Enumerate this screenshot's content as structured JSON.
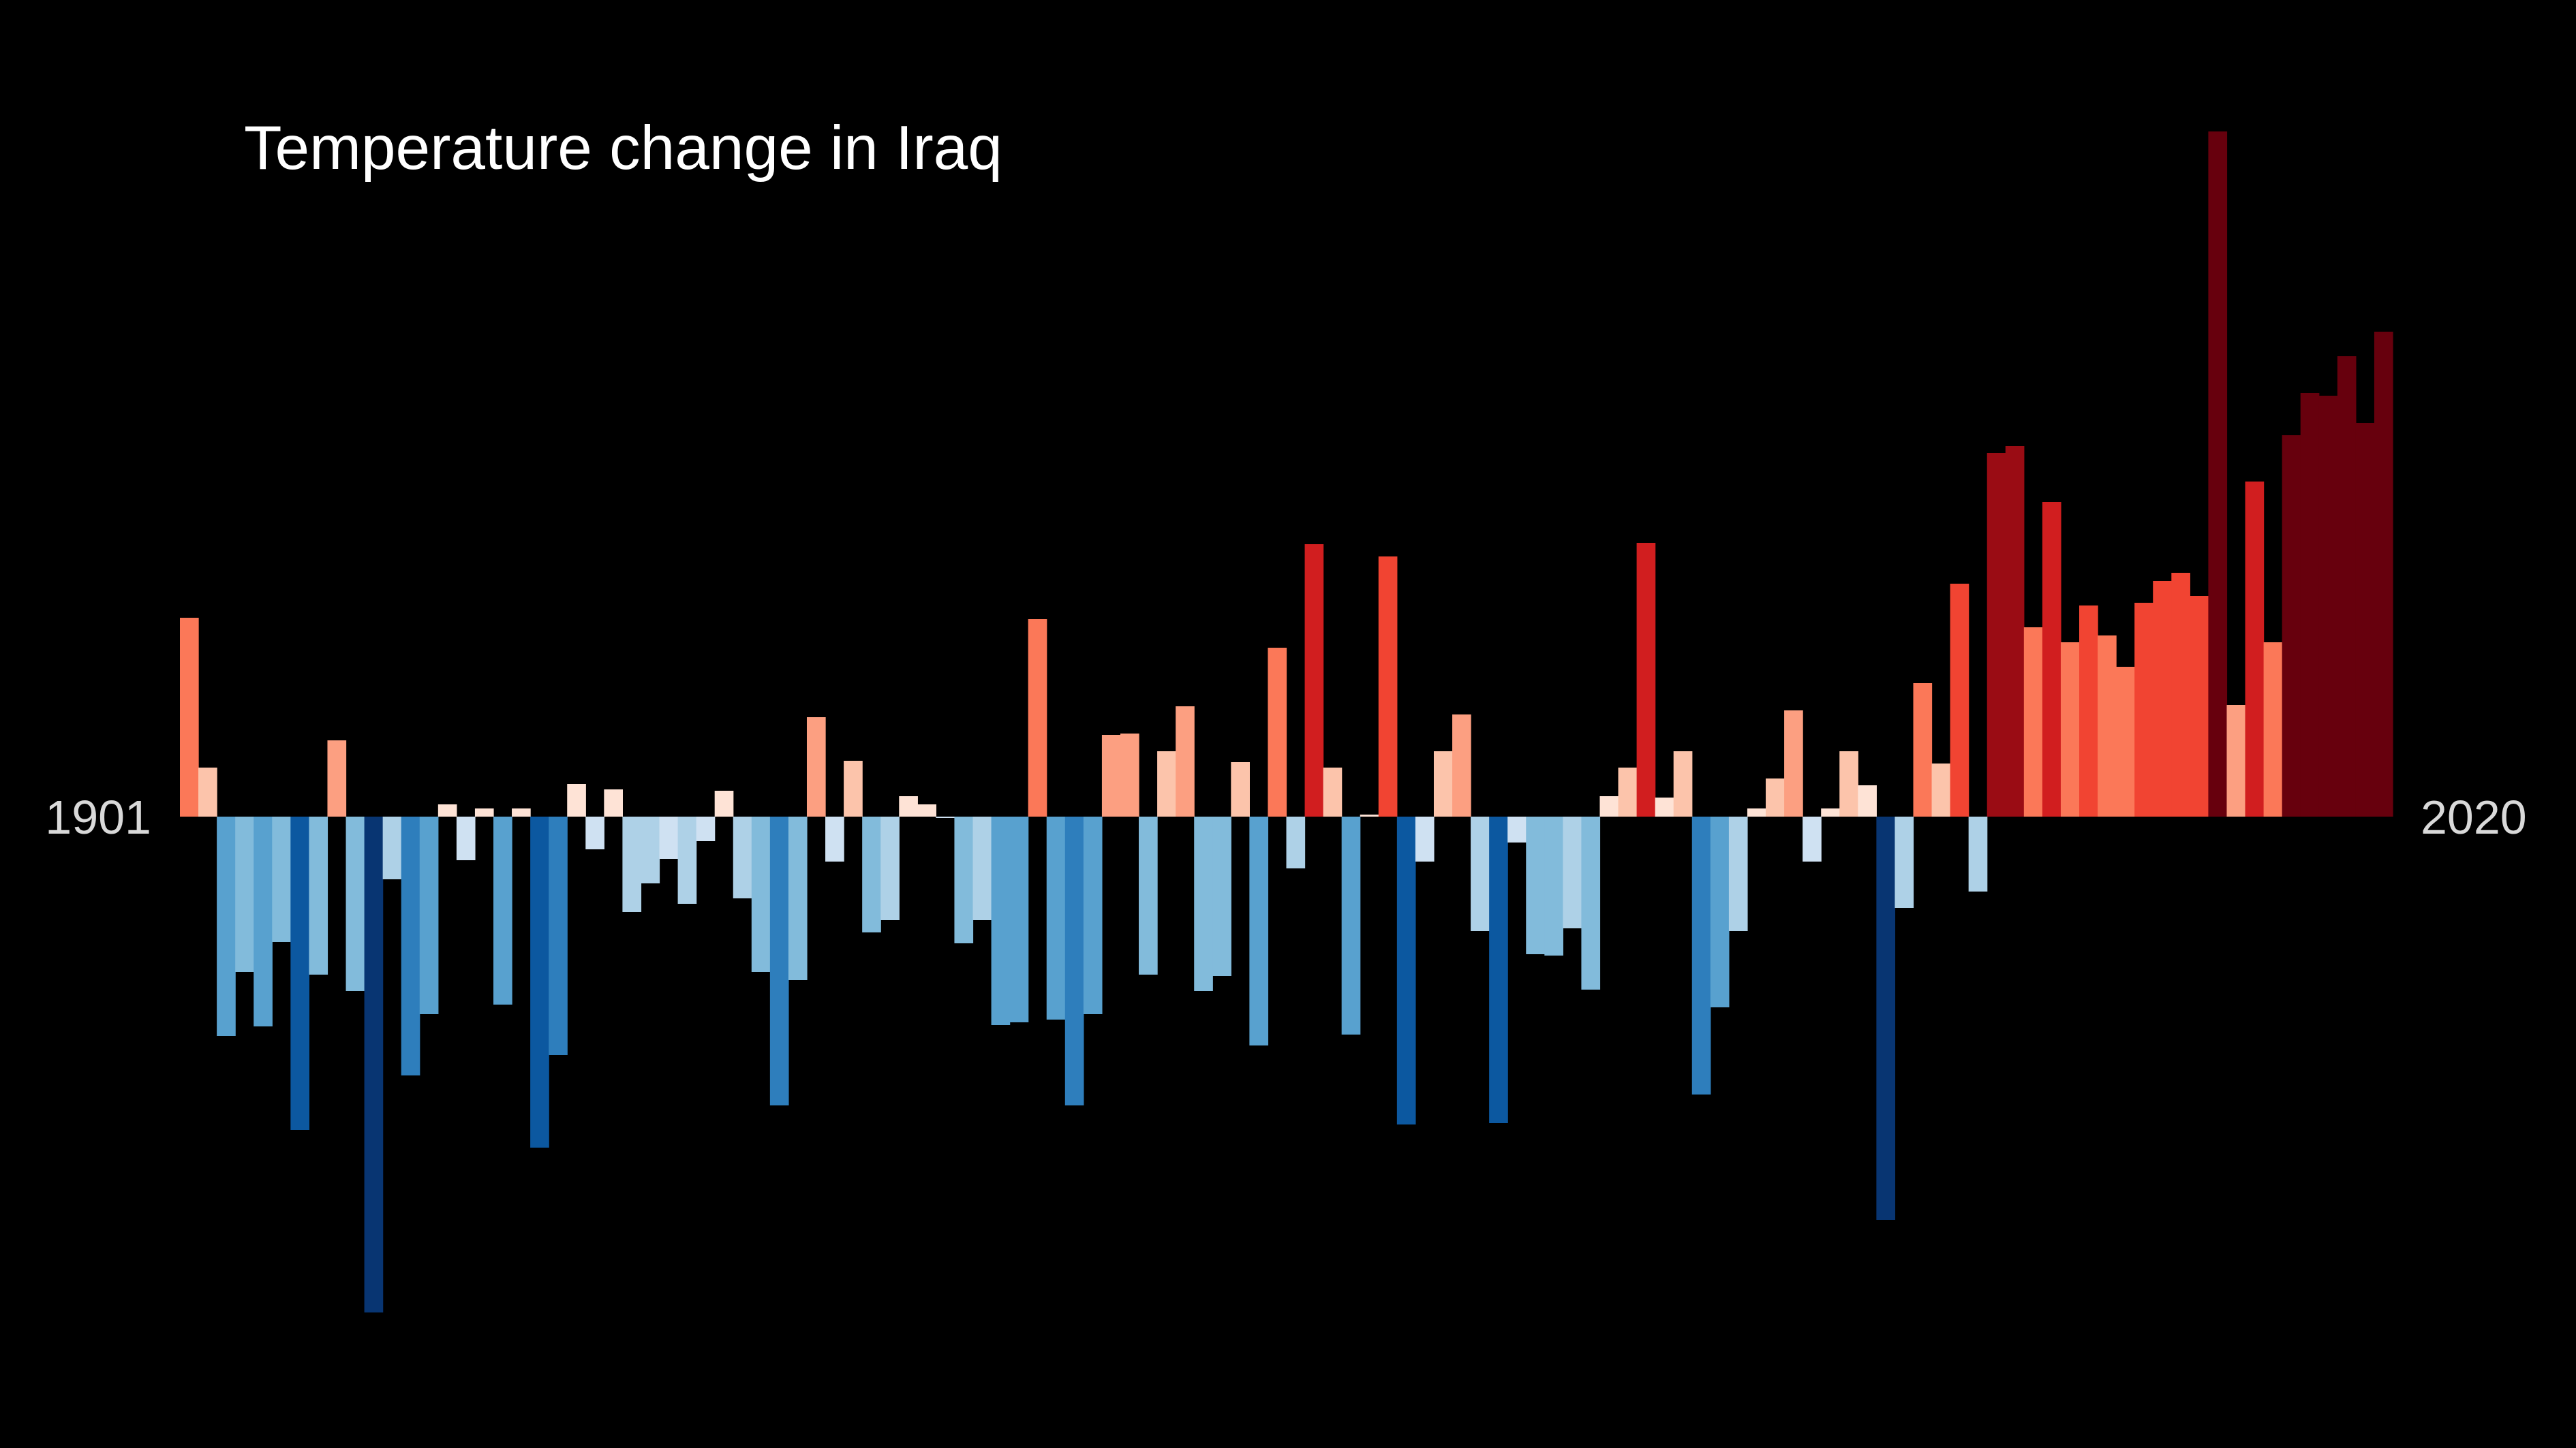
{
  "chart_data": {
    "type": "bar",
    "title": "Temperature change in Iraq",
    "x_start_label": "1901",
    "x_end_label": "2020",
    "x": [
      1901,
      1902,
      1903,
      1904,
      1905,
      1906,
      1907,
      1908,
      1909,
      1910,
      1911,
      1912,
      1913,
      1914,
      1915,
      1916,
      1917,
      1918,
      1919,
      1920,
      1921,
      1922,
      1923,
      1924,
      1925,
      1926,
      1927,
      1928,
      1929,
      1930,
      1931,
      1932,
      1933,
      1934,
      1935,
      1936,
      1937,
      1938,
      1939,
      1940,
      1941,
      1942,
      1943,
      1944,
      1945,
      1946,
      1947,
      1948,
      1949,
      1950,
      1951,
      1952,
      1953,
      1954,
      1955,
      1956,
      1957,
      1958,
      1959,
      1960,
      1961,
      1962,
      1963,
      1964,
      1965,
      1966,
      1967,
      1968,
      1969,
      1970,
      1971,
      1972,
      1973,
      1974,
      1975,
      1976,
      1977,
      1978,
      1979,
      1980,
      1981,
      1982,
      1983,
      1984,
      1985,
      1986,
      1987,
      1988,
      1989,
      1990,
      1991,
      1992,
      1993,
      1994,
      1995,
      1996,
      1997,
      1998,
      1999,
      2000,
      2001,
      2002,
      2003,
      2004,
      2005,
      2006,
      2007,
      2008,
      2009,
      2010,
      2011,
      2012,
      2013,
      2014,
      2015,
      2016,
      2017,
      2018,
      2019,
      2020
    ],
    "values": [
      0.292,
      0.072,
      -0.322,
      -0.228,
      -0.308,
      -0.184,
      -0.46,
      -0.232,
      0.112,
      -0.256,
      -0.728,
      -0.092,
      -0.38,
      -0.29,
      0.018,
      -0.064,
      0.012,
      -0.276,
      0.012,
      -0.486,
      -0.35,
      0.048,
      -0.048,
      0.04,
      -0.14,
      -0.098,
      -0.062,
      -0.128,
      -0.036,
      0.038,
      -0.12,
      -0.228,
      -0.424,
      -0.24,
      0.146,
      -0.066,
      0.082,
      -0.17,
      -0.152,
      0.03,
      0.018,
      -0.002,
      -0.186,
      -0.152,
      -0.306,
      -0.302,
      0.29,
      -0.298,
      -0.424,
      -0.29,
      0.12,
      0.122,
      -0.232,
      0.096,
      0.162,
      -0.256,
      -0.234,
      0.08,
      -0.336,
      0.248,
      -0.076,
      0.4,
      0.072,
      -0.32,
      0.003,
      0.382,
      -0.452,
      -0.066,
      0.096,
      0.15,
      -0.168,
      -0.45,
      -0.038,
      -0.202,
      -0.204,
      -0.164,
      -0.254,
      0.03,
      0.072,
      0.402,
      0.028,
      0.096,
      -0.408,
      -0.28,
      -0.168,
      0.012,
      0.056,
      0.156,
      -0.066,
      0.012,
      0.096,
      0.046,
      -0.592,
      -0.134,
      0.196,
      0.078,
      0.342,
      -0.11,
      0.534,
      0.544,
      0.278,
      0.462,
      0.256,
      0.31,
      0.266,
      0.22,
      0.314,
      0.346,
      0.358,
      0.324,
      1.006,
      0.164,
      0.492,
      0.256,
      0.56,
      0.622,
      0.618,
      0.676,
      0.578,
      0.712
    ]
  }
}
